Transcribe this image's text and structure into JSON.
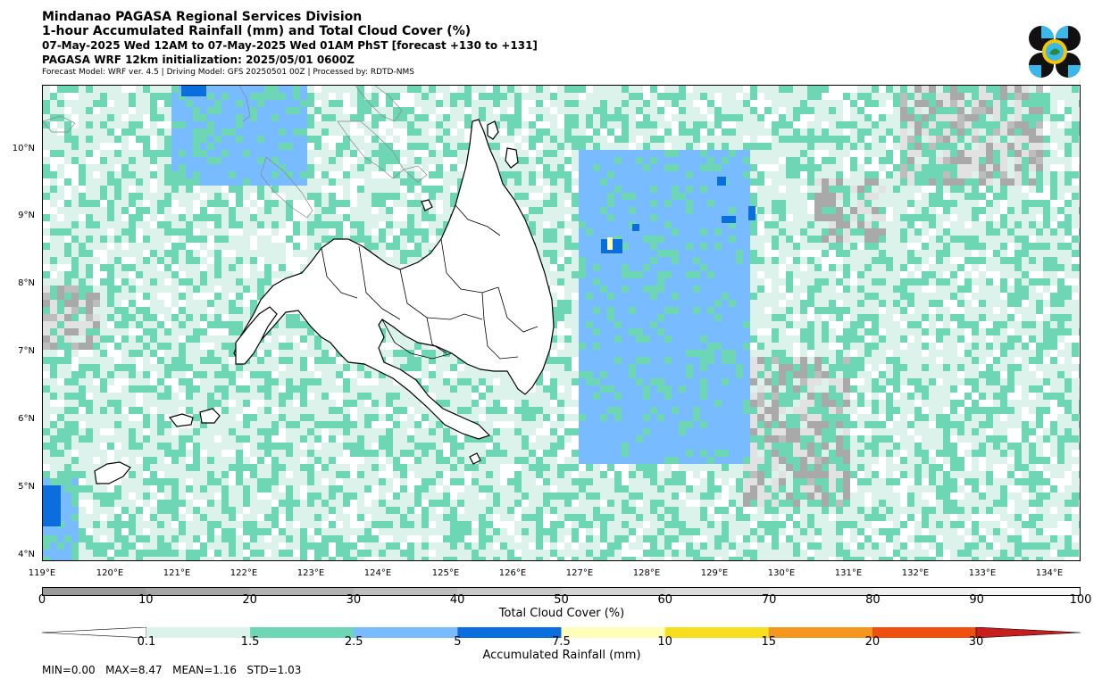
{
  "header": {
    "line1": "Mindanao PAGASA Regional Services Division",
    "line2": "1-hour Accumulated Rainfall (mm) and Total Cloud Cover (%)",
    "line3": "07-May-2025 Wed 12AM to 07-May-2025 Wed 01AM PhST [forecast +130 to +131]",
    "line4": "PAGASA WRF 12km initialization: 2025/05/01 0600Z",
    "line5": "Forecast Model: WRF ver. 4.5 | Driving Model: GFS 20250501 00Z | Processed by: RDTD-NMS"
  },
  "map": {
    "lat_labels": [
      "10°N",
      "9°N",
      "8°N",
      "7°N",
      "6°N",
      "5°N",
      "4°N"
    ],
    "lon_labels": [
      "119°E",
      "120°E",
      "121°E",
      "122°E",
      "123°E",
      "124°E",
      "125°E",
      "126°E",
      "127°E",
      "128°E",
      "129°E",
      "130°E",
      "131°E",
      "132°E",
      "133°E",
      "134°E"
    ],
    "colors": {
      "rain_0_1": "#dcf3ec",
      "rain_1_5": "#6dd6b4",
      "rain_2_5": "#78bbff",
      "rain_5": "#0a6fdc",
      "rain_7_5": "#ffffb9"
    }
  },
  "cloud_colorbar": {
    "ticks": [
      "0",
      "10",
      "20",
      "30",
      "40",
      "50",
      "60",
      "70",
      "80",
      "90",
      "100"
    ],
    "label": "Total Cloud Cover (%)",
    "colors": [
      "#9a9a9a",
      "#a6a6a6",
      "#b2b2b2",
      "#bebebe",
      "#c9c9c9",
      "#d3d3d3",
      "#dcdcdc",
      "#e5e5e5",
      "#eeeeee",
      "#f6f6f6"
    ]
  },
  "rain_colorbar": {
    "ticks": [
      "0.1",
      "1.5",
      "2.5",
      "5",
      "7.5",
      "10",
      "15",
      "20",
      "30"
    ],
    "label": "Accumulated Rainfall (mm)",
    "colors": [
      "#dcf3ec",
      "#6dd6b4",
      "#78bbff",
      "#0a6fdc",
      "#ffffb9",
      "#f5df1e",
      "#f5961e",
      "#f0500f",
      "#c81e1e"
    ]
  },
  "stats": "MIN=0.00   MAX=8.47   MEAN=1.16   STD=1.03"
}
